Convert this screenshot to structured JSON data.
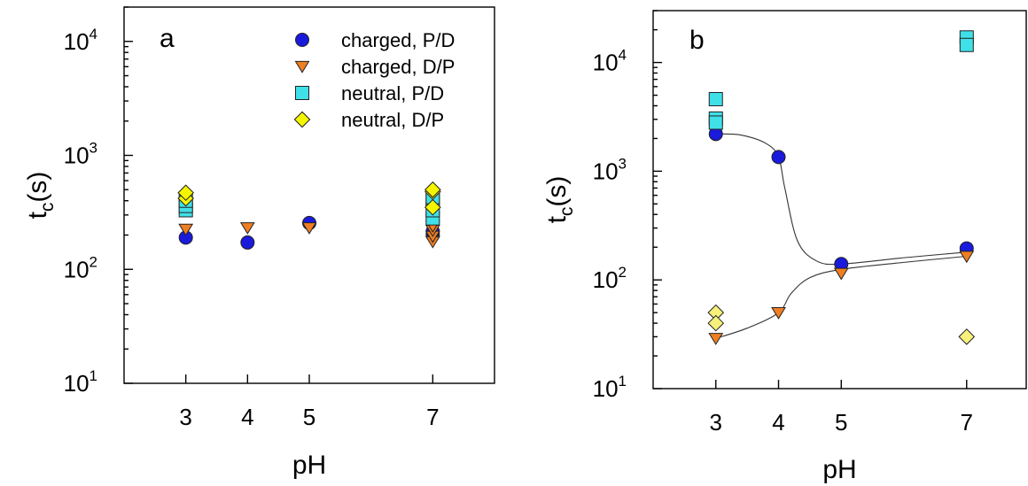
{
  "chart_data": [
    {
      "type": "scatter",
      "panel_label": "a",
      "xlabel": "pH",
      "ylabel_main": "t",
      "ylabel_sub": "c",
      "ylabel_unit": "(s)",
      "yscale": "log",
      "ylim": [
        10,
        20000
      ],
      "xlim": [
        2,
        8
      ],
      "xticks": [
        3,
        4,
        5,
        7
      ],
      "yticks": [
        {
          "value": 10,
          "base": "10",
          "exp": "1"
        },
        {
          "value": 100,
          "base": "10",
          "exp": "2"
        },
        {
          "value": 1000,
          "base": "10",
          "exp": "3"
        },
        {
          "value": 10000,
          "base": "10",
          "exp": "4"
        }
      ],
      "legend_position": "top-right",
      "series": [
        {
          "name": "charged, P/D",
          "marker": "circle",
          "color": "#1a1adc",
          "points": [
            [
              3,
              190
            ],
            [
              4,
              172
            ],
            [
              5,
              255
            ],
            [
              7,
              200
            ],
            [
              7,
              215
            ]
          ]
        },
        {
          "name": "charged, D/P",
          "marker": "triangle-down",
          "color": "#f07f22",
          "points": [
            [
              3,
              225
            ],
            [
              4,
              232
            ],
            [
              5,
              232
            ],
            [
              7,
              175
            ],
            [
              7,
              195
            ],
            [
              7,
              220
            ],
            [
              7,
              240
            ]
          ]
        },
        {
          "name": "neutral, P/D",
          "marker": "square",
          "color": "#40e0e8",
          "points": [
            [
              3,
              330
            ],
            [
              3,
              360
            ],
            [
              3,
              400
            ],
            [
              7,
              280
            ],
            [
              7,
              330
            ],
            [
              7,
              400
            ],
            [
              7,
              430
            ]
          ]
        },
        {
          "name": "neutral, D/P",
          "marker": "diamond",
          "color": "#f5f500",
          "points": [
            [
              3,
              420
            ],
            [
              3,
              470
            ],
            [
              7,
              350
            ],
            [
              7,
              480
            ],
            [
              7,
              500
            ]
          ]
        }
      ]
    },
    {
      "type": "scatter",
      "panel_label": "b",
      "xlabel": "pH",
      "ylabel_main": "t",
      "ylabel_sub": "c",
      "ylabel_unit": "(s)",
      "yscale": "log",
      "ylim": [
        10,
        30000
      ],
      "xlim": [
        2,
        7.95
      ],
      "xticks": [
        3,
        4,
        5,
        7
      ],
      "yticks": [
        {
          "value": 10,
          "base": "10",
          "exp": "1"
        },
        {
          "value": 100,
          "base": "10",
          "exp": "2"
        },
        {
          "value": 1000,
          "base": "10",
          "exp": "3"
        },
        {
          "value": 10000,
          "base": "10",
          "exp": "4"
        }
      ],
      "series": [
        {
          "name": "charged, P/D",
          "marker": "circle",
          "color": "#1a1adc",
          "points": [
            [
              3,
              2200
            ],
            [
              4,
              1350
            ],
            [
              5,
              140
            ],
            [
              7,
              195
            ]
          ]
        },
        {
          "name": "charged, D/P",
          "marker": "triangle-down",
          "color": "#f07f22",
          "points": [
            [
              3,
              29
            ],
            [
              4,
              50
            ],
            [
              5,
              115
            ],
            [
              7,
              165
            ]
          ]
        },
        {
          "name": "neutral, P/D",
          "marker": "square",
          "color": "#40e0e8",
          "points": [
            [
              3,
              4600
            ],
            [
              3,
              3050
            ],
            [
              3,
              2800
            ],
            [
              7,
              17000
            ],
            [
              7,
              14500
            ]
          ]
        },
        {
          "name": "neutral, D/P",
          "marker": "diamond",
          "color": "#f7f07a",
          "points": [
            [
              3,
              50
            ],
            [
              3,
              40
            ],
            [
              7,
              30
            ]
          ]
        }
      ],
      "fit_curves": [
        {
          "series": "charged, P/D",
          "points": [
            [
              3,
              2200
            ],
            [
              3.4,
              2150
            ],
            [
              3.8,
              1800
            ],
            [
              4,
              1350
            ],
            [
              4.1,
              700
            ],
            [
              4.3,
              230
            ],
            [
              4.6,
              150
            ],
            [
              5,
              140
            ],
            [
              6,
              160
            ],
            [
              7,
              180
            ]
          ]
        },
        {
          "series": "charged, D/P",
          "points": [
            [
              3,
              29
            ],
            [
              3.5,
              36
            ],
            [
              4,
              50
            ],
            [
              4.2,
              75
            ],
            [
              4.5,
              105
            ],
            [
              5,
              125
            ],
            [
              6,
              145
            ],
            [
              7,
              165
            ]
          ]
        }
      ]
    }
  ]
}
